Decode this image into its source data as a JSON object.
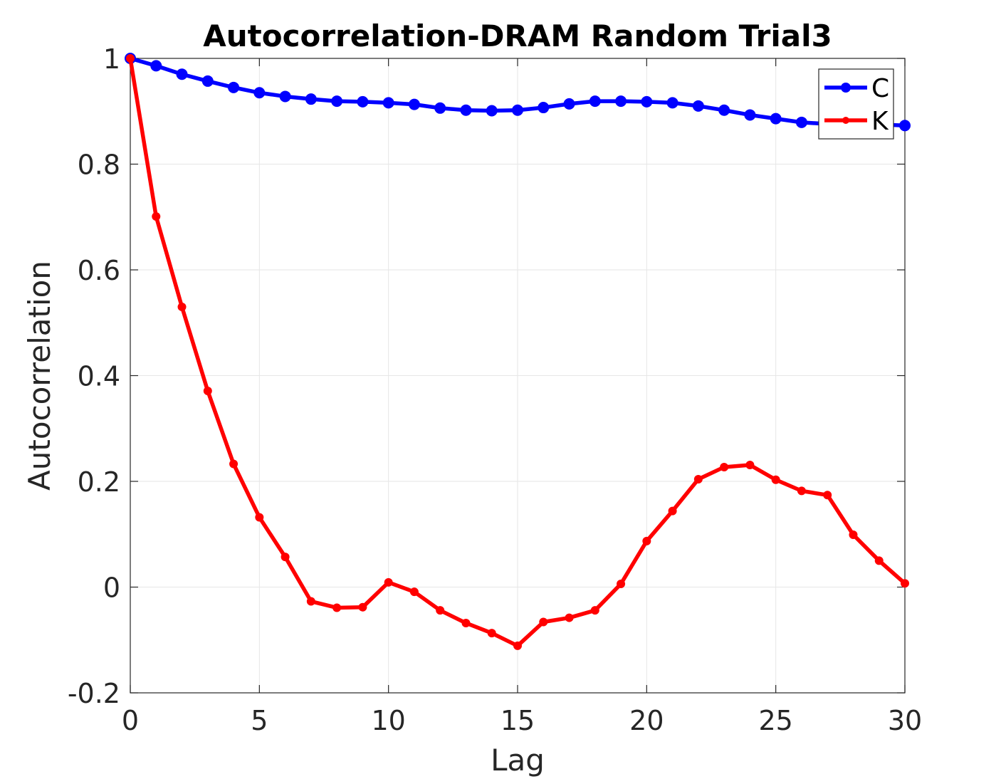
{
  "chart_data": {
    "type": "line",
    "title": "Autocorrelation-DRAM Random Trial3",
    "xlabel": "Lag",
    "ylabel": "Autocorrelation",
    "xlim": [
      0,
      30
    ],
    "ylim": [
      -0.2,
      1
    ],
    "xticks": [
      0,
      5,
      10,
      15,
      20,
      25,
      30
    ],
    "xtick_labels": [
      "0",
      "5",
      "10",
      "15",
      "20",
      "25",
      "30"
    ],
    "yticks": [
      -0.2,
      0,
      0.2,
      0.4,
      0.6,
      0.8,
      1
    ],
    "ytick_labels": [
      "-0.2",
      "0",
      "0.2",
      "0.4",
      "0.6",
      "0.8",
      "1"
    ],
    "grid": true,
    "legend_position": "top-right",
    "x": [
      0,
      1,
      2,
      3,
      4,
      5,
      6,
      7,
      8,
      9,
      10,
      11,
      12,
      13,
      14,
      15,
      16,
      17,
      18,
      19,
      20,
      21,
      22,
      23,
      24,
      25,
      26,
      27,
      28,
      29,
      30
    ],
    "series": [
      {
        "name": "C",
        "color": "#0000ff",
        "marker": "circle-large",
        "values": [
          1.0,
          0.986,
          0.97,
          0.957,
          0.945,
          0.935,
          0.928,
          0.923,
          0.919,
          0.918,
          0.916,
          0.913,
          0.906,
          0.902,
          0.901,
          0.902,
          0.907,
          0.914,
          0.919,
          0.919,
          0.918,
          0.916,
          0.91,
          0.902,
          0.893,
          0.886,
          0.879,
          0.876,
          0.875,
          0.875,
          0.873
        ]
      },
      {
        "name": "K",
        "color": "#ff0000",
        "marker": "dot-small",
        "values": [
          1.0,
          0.701,
          0.53,
          0.371,
          0.233,
          0.132,
          0.057,
          -0.027,
          -0.039,
          -0.038,
          0.009,
          -0.009,
          -0.044,
          -0.068,
          -0.087,
          -0.111,
          -0.066,
          -0.058,
          -0.044,
          0.006,
          0.087,
          0.144,
          0.204,
          0.227,
          0.231,
          0.203,
          0.182,
          0.174,
          0.099,
          0.05,
          0.007
        ]
      }
    ]
  }
}
